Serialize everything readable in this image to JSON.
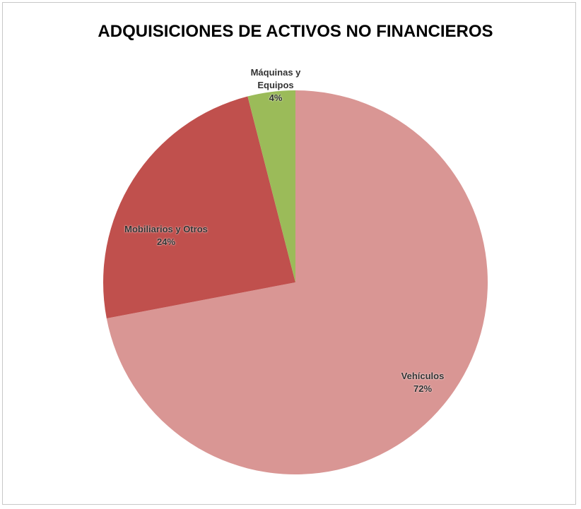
{
  "chart_data": {
    "type": "pie",
    "title": "ADQUISICIONES DE ACTIVOS NO FINANCIEROS",
    "categories": [
      "Vehículos",
      "Mobiliarios y Otros",
      "Máquinas y Equipos"
    ],
    "values": [
      72,
      24,
      4
    ],
    "value_labels": [
      "72%",
      "24%",
      "4%"
    ],
    "colors": [
      "#d99694",
      "#c0504d",
      "#9bbb59"
    ]
  }
}
